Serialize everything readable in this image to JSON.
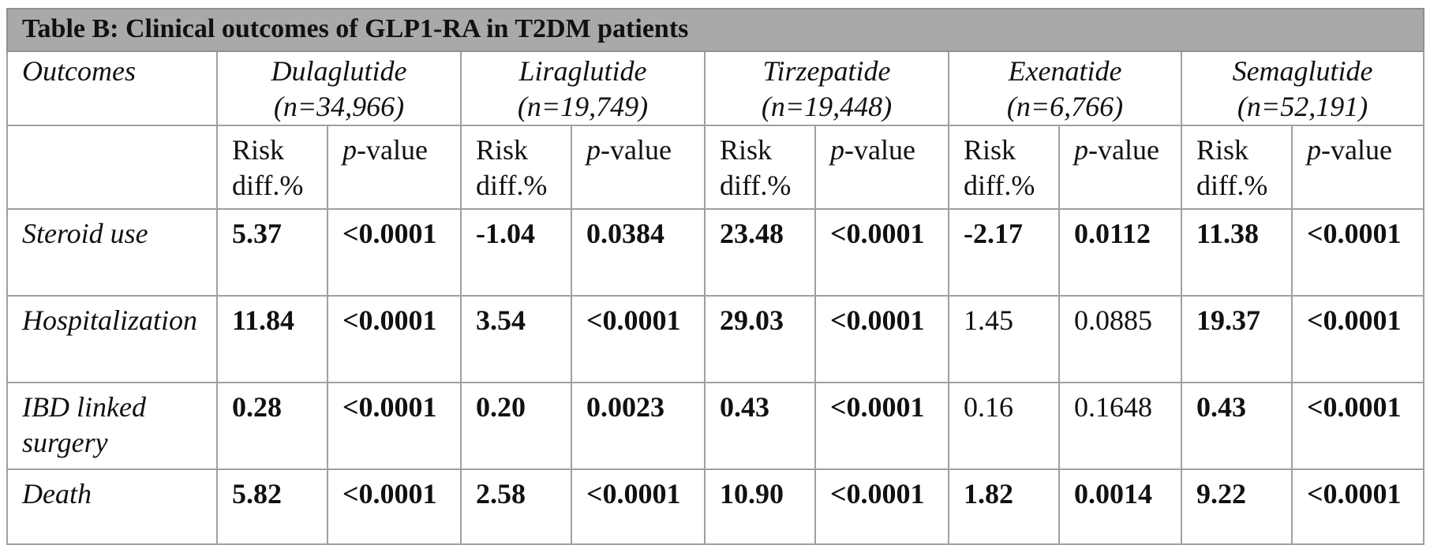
{
  "title": "Table B: Clinical outcomes of GLP1-RA in T2DM patients",
  "outcome_header": "Outcomes",
  "drugs": [
    {
      "name": "Dulaglutide",
      "n": "(n=34,966)"
    },
    {
      "name": "Liraglutide",
      "n": "(n=19,749)"
    },
    {
      "name": "Tirzepatide",
      "n": "(n=19,448)"
    },
    {
      "name": "Exenatide",
      "n": "(n=6,766)"
    },
    {
      "name": "Semaglutide",
      "n": "(n=52,191)"
    }
  ],
  "sub": {
    "risk_line1": "Risk",
    "risk_line2": "diff.%",
    "p_letter": "p",
    "p_rest": "-value"
  },
  "rows": [
    {
      "outcome": "Steroid use",
      "cells": [
        "5.37",
        "<0.0001",
        "-1.04",
        "0.0384",
        "23.48",
        "<0.0001",
        "-2.17",
        "0.0112",
        "11.38",
        "<0.0001"
      ],
      "bold": [
        true,
        true,
        true,
        true,
        true,
        true,
        true,
        true,
        true,
        true
      ]
    },
    {
      "outcome": "Hospitalization",
      "cells": [
        "11.84",
        "<0.0001",
        "3.54",
        "<0.0001",
        "29.03",
        "<0.0001",
        "1.45",
        "0.0885",
        "19.37",
        "<0.0001"
      ],
      "bold": [
        true,
        true,
        true,
        true,
        true,
        true,
        false,
        false,
        true,
        true
      ]
    },
    {
      "outcome": "IBD linked surgery",
      "outcome_line1": "IBD linked",
      "outcome_line2": "surgery",
      "cells": [
        "0.28",
        "<0.0001",
        "0.20",
        "0.0023",
        "0.43",
        "<0.0001",
        "0.16",
        "0.1648",
        "0.43",
        "<0.0001"
      ],
      "bold": [
        true,
        true,
        true,
        true,
        true,
        true,
        false,
        false,
        true,
        true
      ]
    },
    {
      "outcome": "Death",
      "cells": [
        "5.82",
        "<0.0001",
        "2.58",
        "<0.0001",
        "10.90",
        "<0.0001",
        "1.82",
        "0.0014",
        "9.22",
        "<0.0001"
      ],
      "bold": [
        true,
        true,
        true,
        true,
        true,
        true,
        true,
        true,
        true,
        true
      ]
    }
  ]
}
